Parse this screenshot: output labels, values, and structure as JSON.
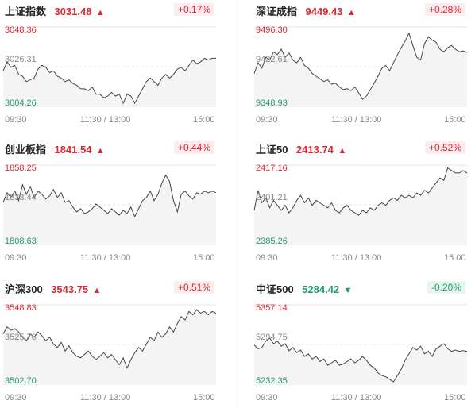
{
  "colors": {
    "up": "#e0262e",
    "down": "#1f9c6e",
    "line": "#444444",
    "grid": "#e6e6e6"
  },
  "x_labels": [
    "09:30",
    "11:30 / 13:00",
    "15:00"
  ],
  "cards": [
    {
      "name": "上证指数",
      "price": "3031.48",
      "dir": "up",
      "arrow": "▲",
      "change": "+0.17%",
      "y_top": "3048.36",
      "y_mid": "3026.31",
      "y_bot": "3004.26",
      "ylim": [
        3004.26,
        3048.36
      ],
      "series": [
        3024,
        3029,
        3026,
        3027,
        3022,
        3021,
        3018,
        3019,
        3020,
        3025,
        3027,
        3026,
        3023,
        3024,
        3021,
        3020,
        3018,
        3019,
        3017,
        3016,
        3014,
        3014,
        3013,
        3015,
        3011,
        3011,
        3009,
        3010,
        3012,
        3010,
        3011,
        3006,
        3011,
        3010,
        3006,
        3010,
        3014,
        3018,
        3020,
        3018,
        3016,
        3020,
        3022,
        3020,
        3022,
        3025,
        3026,
        3024,
        3027,
        3030,
        3028,
        3029,
        3031,
        3030,
        3031,
        3031
      ]
    },
    {
      "name": "深证成指",
      "price": "9449.43",
      "dir": "up",
      "arrow": "▲",
      "change": "+0.28%",
      "y_top": "9496.30",
      "y_mid": "9422.61",
      "y_bot": "9348.93",
      "ylim": [
        9348.93,
        9496.3
      ],
      "series": [
        9410,
        9430,
        9420,
        9440,
        9435,
        9450,
        9445,
        9455,
        9440,
        9448,
        9435,
        9430,
        9440,
        9425,
        9420,
        9410,
        9405,
        9400,
        9395,
        9398,
        9390,
        9392,
        9385,
        9380,
        9382,
        9378,
        9385,
        9374,
        9362,
        9368,
        9380,
        9392,
        9405,
        9420,
        9425,
        9415,
        9430,
        9445,
        9458,
        9470,
        9485,
        9462,
        9440,
        9435,
        9465,
        9478,
        9472,
        9468,
        9455,
        9450,
        9458,
        9462,
        9455,
        9450,
        9452,
        9449
      ]
    },
    {
      "name": "创业板指",
      "price": "1841.54",
      "dir": "up",
      "arrow": "▲",
      "change": "+0.44%",
      "y_top": "1858.25",
      "y_mid": "1833.44",
      "y_bot": "1808.63",
      "ylim": [
        1808.63,
        1858.25
      ],
      "series": [
        1835,
        1841,
        1838,
        1842,
        1836,
        1846,
        1840,
        1845,
        1838,
        1842,
        1840,
        1837,
        1839,
        1843,
        1838,
        1841,
        1835,
        1836,
        1832,
        1829,
        1831,
        1828,
        1829,
        1831,
        1834,
        1832,
        1830,
        1828,
        1831,
        1829,
        1827,
        1830,
        1828,
        1832,
        1826,
        1831,
        1836,
        1838,
        1842,
        1836,
        1840,
        1847,
        1852,
        1848,
        1836,
        1829,
        1840,
        1842,
        1839,
        1837,
        1841,
        1840,
        1842,
        1841,
        1842,
        1841
      ]
    },
    {
      "name": "上证50",
      "price": "2413.74",
      "dir": "up",
      "arrow": "▲",
      "change": "+0.52%",
      "y_top": "2417.16",
      "y_mid": "2401.21",
      "y_bot": "2385.26",
      "ylim": [
        2385.26,
        2417.16
      ],
      "series": [
        2399,
        2407,
        2402,
        2404,
        2400,
        2403,
        2401,
        2399,
        2401,
        2398,
        2400,
        2403,
        2405,
        2402,
        2404,
        2401,
        2403,
        2402,
        2401,
        2400,
        2402,
        2399,
        2398,
        2400,
        2401,
        2399,
        2398,
        2397,
        2399,
        2398,
        2400,
        2399,
        2401,
        2402,
        2401,
        2403,
        2404,
        2403,
        2405,
        2404,
        2405,
        2404,
        2406,
        2405,
        2407,
        2406,
        2408,
        2410,
        2412,
        2411,
        2416,
        2415,
        2414,
        2414,
        2415,
        2414
      ]
    },
    {
      "name": "沪深300",
      "price": "3543.75",
      "dir": "up",
      "arrow": "▲",
      "change": "+0.51%",
      "y_top": "3548.83",
      "y_mid": "3525.76",
      "y_bot": "3502.70",
      "ylim": [
        3502.7,
        3548.83
      ],
      "series": [
        3532,
        3536,
        3534,
        3535,
        3533,
        3530,
        3528,
        3532,
        3530,
        3533,
        3531,
        3528,
        3530,
        3526,
        3524,
        3527,
        3522,
        3525,
        3521,
        3519,
        3518,
        3520,
        3522,
        3519,
        3517,
        3519,
        3521,
        3518,
        3520,
        3517,
        3514,
        3518,
        3512,
        3517,
        3521,
        3524,
        3522,
        3526,
        3530,
        3528,
        3533,
        3530,
        3532,
        3536,
        3533,
        3538,
        3542,
        3540,
        3545,
        3543,
        3546,
        3544,
        3545,
        3543,
        3545,
        3544
      ]
    },
    {
      "name": "中证500",
      "price": "5284.42",
      "dir": "down",
      "arrow": "▼",
      "change": "-0.20%",
      "y_top": "5357.14",
      "y_mid": "5294.75",
      "y_bot": "5232.35",
      "ylim": [
        5232.35,
        5357.14
      ],
      "series": [
        5294,
        5288,
        5290,
        5300,
        5305,
        5296,
        5300,
        5292,
        5296,
        5285,
        5290,
        5282,
        5286,
        5276,
        5280,
        5272,
        5276,
        5268,
        5272,
        5262,
        5266,
        5270,
        5262,
        5264,
        5268,
        5272,
        5266,
        5270,
        5276,
        5270,
        5262,
        5258,
        5250,
        5246,
        5244,
        5240,
        5236,
        5246,
        5256,
        5270,
        5280,
        5290,
        5286,
        5292,
        5280,
        5284,
        5276,
        5288,
        5292,
        5296,
        5288,
        5284,
        5286,
        5284,
        5285,
        5284
      ]
    }
  ]
}
